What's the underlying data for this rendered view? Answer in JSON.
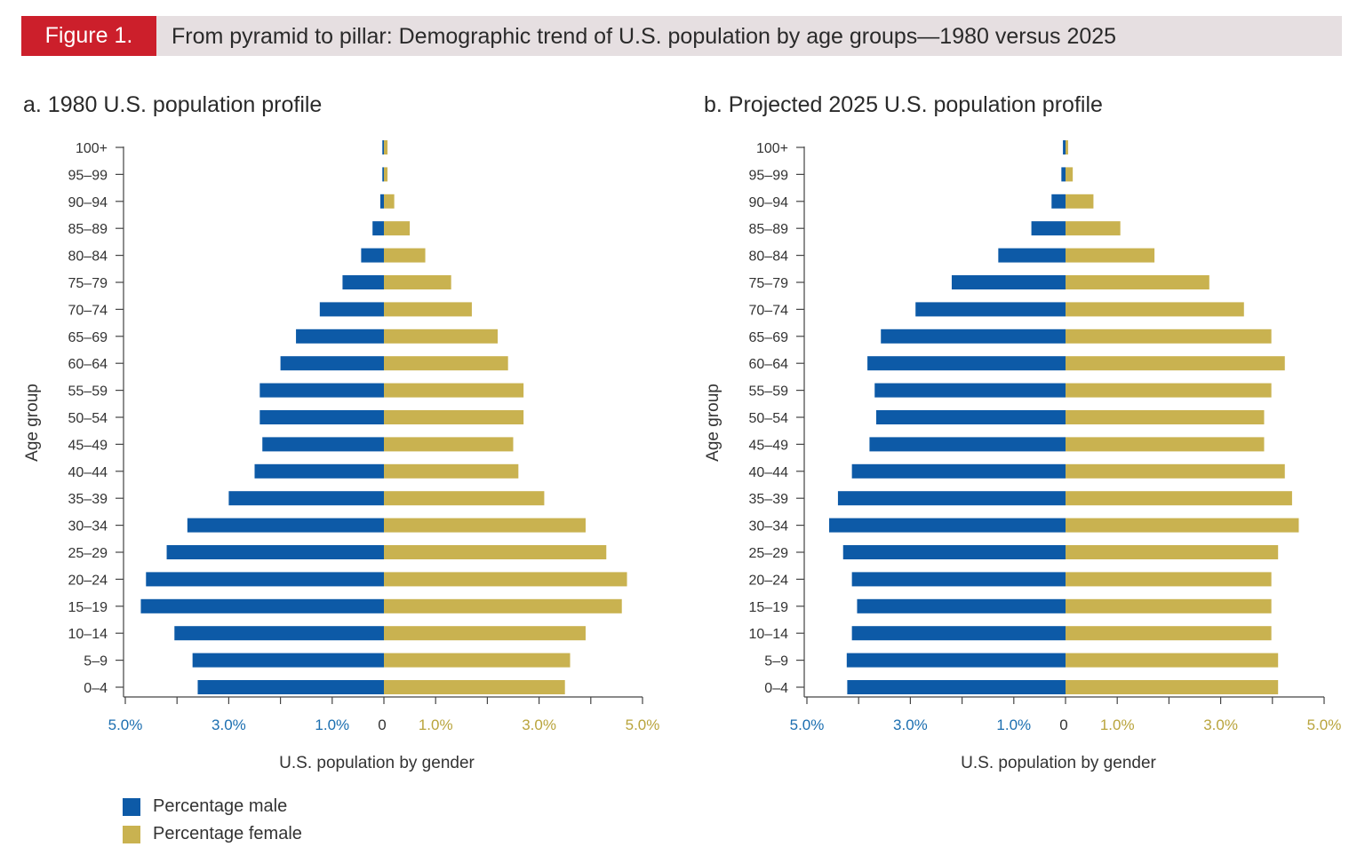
{
  "header": {
    "figure_label": "Figure 1.",
    "title": "From pyramid to pillar: Demographic trend of U.S. population by age groups—1980 versus 2025"
  },
  "colors": {
    "male": "#0d5aa7",
    "female": "#c9b250",
    "male_tick": "#1b6eb0",
    "female_tick": "#b9a43c",
    "header_red": "#cc1f2b",
    "header_bg": "#e6dfe1"
  },
  "legend": {
    "male": "Percentage male",
    "female": "Percentage female"
  },
  "chart_data": [
    {
      "type": "bar",
      "orientation": "horizontal-pyramid",
      "title": "a. 1980 U.S. population profile",
      "ylabel": "Age group",
      "xlabel": "U.S. population by gender",
      "xlim": [
        -5,
        5
      ],
      "x_tick_labels": [
        "5.0%",
        "3.0%",
        "1.0%",
        "0",
        "1.0%",
        "3.0%",
        "5.0%"
      ],
      "categories": [
        "100+",
        "95–99",
        "90–94",
        "85–89",
        "80–84",
        "75–79",
        "70–74",
        "65–69",
        "60–64",
        "55–59",
        "50–54",
        "45–49",
        "40–44",
        "35–39",
        "30–34",
        "25–29",
        "20–24",
        "15–19",
        "10–14",
        "5–9",
        "0–4"
      ],
      "series": [
        {
          "name": "Percentage male",
          "values": [
            0.03,
            0.03,
            0.07,
            0.22,
            0.44,
            0.8,
            1.24,
            1.7,
            2.0,
            2.4,
            2.4,
            2.35,
            2.5,
            3.0,
            3.8,
            4.2,
            4.6,
            4.7,
            4.05,
            3.7,
            3.6
          ]
        },
        {
          "name": "Percentage female",
          "values": [
            0.07,
            0.07,
            0.2,
            0.5,
            0.8,
            1.3,
            1.7,
            2.2,
            2.4,
            2.7,
            2.7,
            2.5,
            2.6,
            3.1,
            3.9,
            4.3,
            4.7,
            4.6,
            3.9,
            3.6,
            3.5
          ]
        }
      ]
    },
    {
      "type": "bar",
      "orientation": "horizontal-pyramid",
      "title": "b. Projected 2025 U.S. population profile",
      "ylabel": "Age group",
      "xlabel": "U.S. population by gender",
      "xlim": [
        -5,
        5
      ],
      "x_tick_labels": [
        "5.0%",
        "3.0%",
        "1.0%",
        "0",
        "1.0%",
        "3.0%",
        "5.0%"
      ],
      "categories": [
        "100+",
        "95–99",
        "90–94",
        "85–89",
        "80–84",
        "75–79",
        "70–74",
        "65–69",
        "60–64",
        "55–59",
        "50–54",
        "45–49",
        "40–44",
        "35–39",
        "30–34",
        "25–29",
        "20–24",
        "15–19",
        "10–14",
        "5–9",
        "0–4"
      ],
      "series": [
        {
          "name": "Percentage male",
          "values": [
            0.05,
            0.08,
            0.27,
            0.66,
            1.3,
            2.2,
            2.9,
            3.57,
            3.83,
            3.69,
            3.66,
            3.79,
            4.13,
            4.4,
            4.57,
            4.3,
            4.13,
            4.03,
            4.13,
            4.23,
            4.22
          ]
        },
        {
          "name": "Percentage female",
          "values": [
            0.05,
            0.14,
            0.54,
            1.06,
            1.72,
            2.78,
            3.45,
            3.98,
            4.24,
            3.98,
            3.84,
            3.84,
            4.24,
            4.38,
            4.51,
            4.11,
            3.98,
            3.98,
            3.98,
            4.11,
            4.11
          ]
        }
      ]
    }
  ]
}
